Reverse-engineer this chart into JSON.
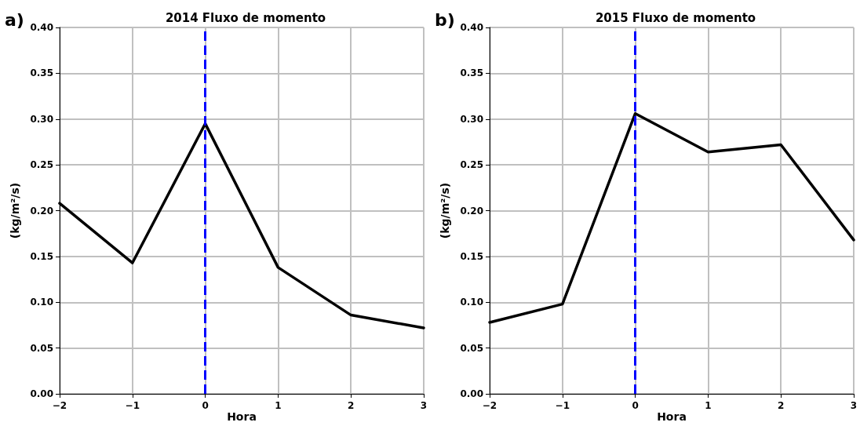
{
  "chart_data": [
    {
      "type": "line",
      "title": "2014 Fluxo de momento",
      "xticks": [
        -2,
        -1,
        0,
        1,
        2,
        3
      ],
      "xlabel": "Hora",
      "ylabel": "(kg/m²/s)",
      "annotations": [
        "a)"
      ],
      "x": [
        -2,
        -1,
        0,
        1,
        2,
        3
      ],
      "series": [
        {
          "color": "#000000",
          "values": [
            0.208,
            0.143,
            0.295,
            0.138,
            0.086,
            0.072
          ]
        }
      ],
      "xlim": [
        -2,
        3
      ],
      "ylim": [
        0,
        0.4
      ],
      "yticks": [
        {
          "value": 0,
          "label": "0.00"
        },
        {
          "value": 0.05,
          "label": "0.05"
        },
        {
          "value": 0.1,
          "label": "0.10"
        },
        {
          "value": 0.15,
          "label": "0.15"
        },
        {
          "value": 0.2,
          "label": "0.20"
        },
        {
          "value": 0.25,
          "label": "0.25"
        },
        {
          "value": 0.3,
          "label": "0.30"
        },
        {
          "value": 0.35,
          "label": "0.35"
        },
        {
          "value": 0.4,
          "label": "0.40"
        }
      ],
      "ref_lines": [
        {
          "axis": "x",
          "value": 0,
          "color": "#0000ff",
          "line_style": "dashed"
        }
      ],
      "grid": true,
      "marker": "none",
      "line_style": "solid"
    },
    {
      "type": "line",
      "title": "2015 Fluxo de momento",
      "xticks": [
        -2,
        -1,
        0,
        1,
        2,
        3
      ],
      "xlabel": "Hora",
      "ylabel": "(kg/m²/s)",
      "annotations": [
        "b)"
      ],
      "x": [
        -2,
        -1,
        0,
        1,
        2,
        3
      ],
      "series": [
        {
          "color": "#000000",
          "values": [
            0.078,
            0.098,
            0.306,
            0.264,
            0.272,
            0.168
          ]
        }
      ],
      "xlim": [
        -2,
        3
      ],
      "ylim": [
        0,
        0.4
      ],
      "yticks": [
        {
          "value": 0,
          "label": "0.00"
        },
        {
          "value": 0.05,
          "label": "0.05"
        },
        {
          "value": 0.1,
          "label": "0.10"
        },
        {
          "value": 0.15,
          "label": "0.15"
        },
        {
          "value": 0.2,
          "label": "0.20"
        },
        {
          "value": 0.25,
          "label": "0.25"
        },
        {
          "value": 0.3,
          "label": "0.30"
        },
        {
          "value": 0.35,
          "label": "0.35"
        },
        {
          "value": 0.4,
          "label": "0.40"
        }
      ],
      "ref_lines": [
        {
          "axis": "x",
          "value": 0,
          "color": "#0000ff",
          "line_style": "dashed"
        }
      ],
      "grid": true,
      "marker": "none",
      "line_style": "solid"
    }
  ]
}
